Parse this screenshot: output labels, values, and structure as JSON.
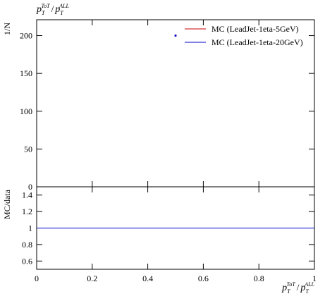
{
  "chart_data": [
    {
      "type": "scatter",
      "title": [
        {
          "p": "p",
          "sub": "T",
          "sup": "ToT"
        },
        "/",
        {
          "p": "p",
          "sub": "T",
          "sup": "ALL"
        }
      ],
      "ylabel": "1/N",
      "xlim": [
        0,
        1
      ],
      "xticks": [
        0,
        0.2,
        0.4,
        0.6,
        0.8,
        1
      ],
      "ylim": [
        0,
        221
      ],
      "yticks": [
        0,
        50,
        100,
        150,
        200
      ],
      "legend": "upper right",
      "series": [
        {
          "name": "MC (LeadJet-1eta-5GeV)",
          "color": "#cc0000",
          "x": [
            0.5
          ],
          "values": [
            200
          ]
        },
        {
          "name": "MC (LeadJet-1eta-20GeV)",
          "color": "#0000cc",
          "x": [
            0.5
          ],
          "values": [
            200
          ]
        }
      ]
    },
    {
      "type": "line",
      "ylabel": "MC/data",
      "xlabel": [
        {
          "p": "p",
          "sub": "T",
          "sup": "ToT"
        },
        "/",
        {
          "p": "p",
          "sub": "T",
          "sup": "ALL"
        }
      ],
      "xlim": [
        0,
        1
      ],
      "xticks": [
        0,
        0.2,
        0.4,
        0.6,
        0.8,
        1
      ],
      "ylim": [
        0.5,
        1.5
      ],
      "yticks": [
        0.6,
        0.8,
        1,
        1.2,
        1.4
      ],
      "series": [
        {
          "color": "#cc0000",
          "x": [
            0,
            1
          ],
          "values": [
            1,
            1
          ]
        },
        {
          "color": "#0000cc",
          "x": [
            0,
            1
          ],
          "values": [
            1,
            1
          ]
        }
      ]
    }
  ]
}
